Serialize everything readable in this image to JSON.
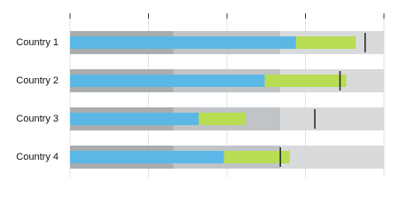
{
  "chart_data": {
    "type": "bullet",
    "categories": [
      "Country 1",
      "Country 2",
      "Country 3",
      "Country 4"
    ],
    "series": [
      {
        "color": "#5bb8e6",
        "values": [
          72,
          62,
          41,
          49
        ]
      },
      {
        "color": "#b8dc52",
        "values": [
          19,
          26,
          15,
          21
        ]
      }
    ],
    "targets": [
      94,
      86,
      78,
      67
    ],
    "target_color": "#222222",
    "ranges": [
      33,
      67,
      100
    ],
    "range_colors": [
      "#a9adaf",
      "#c1c4c6",
      "#d8dadb"
    ],
    "xlim": [
      0,
      100
    ],
    "xticks": [
      0,
      25,
      50,
      75,
      100
    ],
    "grid": true
  }
}
